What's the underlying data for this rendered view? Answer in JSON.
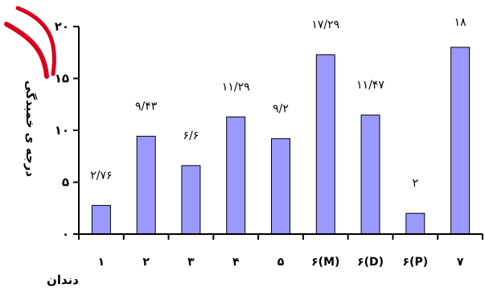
{
  "chart_data": {
    "type": "bar",
    "categories": [
      "۱",
      "۲",
      "۳",
      "۴",
      "۵",
      "۶(M)",
      "۶(D)",
      "۶(P)",
      "۷"
    ],
    "values": [
      2.76,
      9.43,
      6.6,
      11.29,
      9.2,
      17.29,
      11.47,
      2,
      18
    ],
    "data_labels": [
      "۲/۷۶",
      "۹/۴۳",
      "۶/۶",
      "۱۱/۲۹",
      "۹/۲",
      "۱۷/۲۹",
      "۱۱/۴۷",
      "۲",
      "۱۸"
    ],
    "ylim": [
      0,
      20
    ],
    "yticks": [
      0,
      5,
      10,
      15,
      20
    ],
    "ytick_labels": [
      "۰",
      "۵",
      "۱۰",
      "۱۵",
      "۲۰"
    ],
    "xlabel": "دندان",
    "ylabel": "درجه ی خمیدگی",
    "bar_color": "#9999ff",
    "grid": false
  },
  "logo": {
    "color": "#d8001e"
  }
}
